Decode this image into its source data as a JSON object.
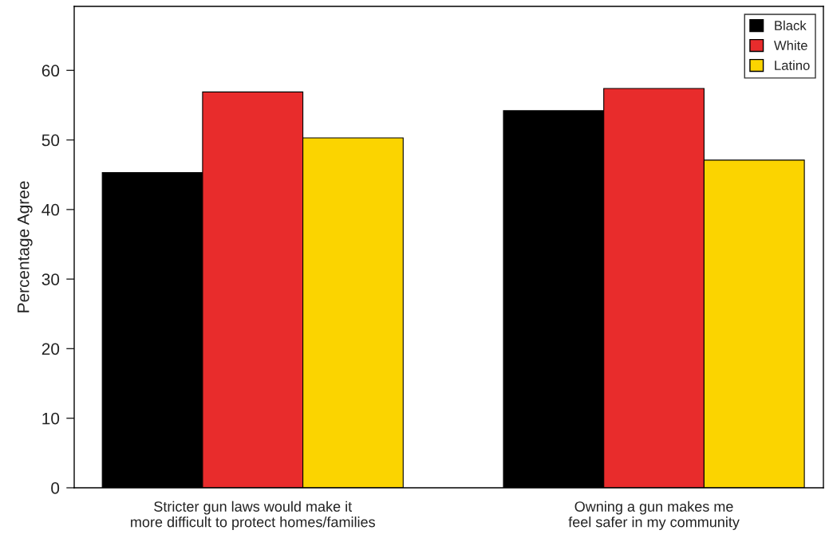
{
  "chart_data": {
    "type": "bar",
    "ylabel": "Percentage Agree",
    "categories": [
      "Stricter gun laws would make it\nmore difficult to protect homes/families",
      "Owning a gun makes me\nfeel safer in my community"
    ],
    "series": [
      {
        "name": "Black",
        "color": "#000000",
        "values": [
          45.3,
          54.2
        ]
      },
      {
        "name": "White",
        "color": "#e82c2c",
        "values": [
          56.9,
          57.4
        ]
      },
      {
        "name": "Latino",
        "color": "#fbd400",
        "values": [
          50.3,
          47.1
        ]
      }
    ],
    "ylim": [
      0,
      69.2
    ],
    "yticks": [
      0,
      10,
      20,
      30,
      40,
      50,
      60
    ],
    "grid": false,
    "legend": "top right"
  }
}
